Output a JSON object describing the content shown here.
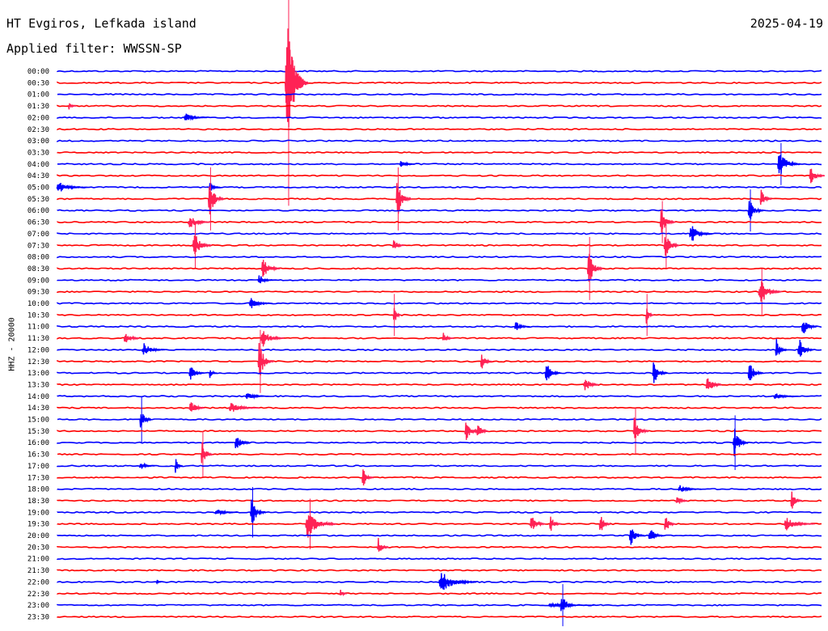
{
  "header": {
    "station": "HT Evgiros, Lefkada island",
    "date": "2025-04-19",
    "filter": "Applied filter: WWSSN-SP"
  },
  "chart_data": {
    "type": "line",
    "subtype": "helicorder",
    "ylabel": "HHZ - 20000",
    "row_labels": [
      "00:00",
      "00:30",
      "01:00",
      "01:30",
      "02:00",
      "02:30",
      "03:00",
      "03:30",
      "04:00",
      "04:30",
      "05:00",
      "05:30",
      "06:00",
      "06:30",
      "07:00",
      "07:30",
      "08:00",
      "08:30",
      "09:00",
      "09:30",
      "10:00",
      "10:30",
      "11:00",
      "11:30",
      "12:00",
      "12:30",
      "13:00",
      "13:30",
      "14:00",
      "14:30",
      "15:00",
      "15:30",
      "16:00",
      "16:30",
      "17:00",
      "17:30",
      "18:00",
      "18:30",
      "19:00",
      "19:30",
      "20:00",
      "20:30",
      "21:00",
      "21:30",
      "22:00",
      "22:30",
      "23:00",
      "23:30"
    ],
    "colors": {
      "even_rows": "#0000ff",
      "odd_rows": "#ff0000",
      "burst_odd": "#ff2255",
      "background": "#ffffff",
      "text": "#000000"
    },
    "events": [
      {
        "row": 1,
        "pos": 0.302,
        "amp": 95,
        "len": 0.03,
        "dense": 1
      },
      {
        "row": 3,
        "pos": 0.016,
        "amp": 6,
        "len": 0.01
      },
      {
        "row": 4,
        "pos": 0.17,
        "amp": 6,
        "len": 0.03
      },
      {
        "row": 8,
        "pos": 0.45,
        "amp": 8,
        "len": 0.02
      },
      {
        "row": 8,
        "pos": 0.945,
        "amp": 20,
        "len": 0.03
      },
      {
        "row": 9,
        "pos": 0.985,
        "amp": 14,
        "len": 0.02
      },
      {
        "row": 10,
        "pos": 0.005,
        "amp": 8,
        "len": 0.04
      },
      {
        "row": 10,
        "pos": 0.2,
        "amp": 10,
        "len": 0.015
      },
      {
        "row": 11,
        "pos": 0.445,
        "amp": 30,
        "len": 0.02
      },
      {
        "row": 11,
        "pos": 0.2,
        "amp": 30,
        "len": 0.02
      },
      {
        "row": 11,
        "pos": 0.92,
        "amp": 16,
        "len": 0.015
      },
      {
        "row": 12,
        "pos": 0.905,
        "amp": 20,
        "len": 0.02
      },
      {
        "row": 13,
        "pos": 0.175,
        "amp": 10,
        "len": 0.03
      },
      {
        "row": 13,
        "pos": 0.79,
        "amp": 20,
        "len": 0.02
      },
      {
        "row": 14,
        "pos": 0.83,
        "amp": 14,
        "len": 0.03
      },
      {
        "row": 15,
        "pos": 0.18,
        "amp": 22,
        "len": 0.025
      },
      {
        "row": 15,
        "pos": 0.44,
        "amp": 14,
        "len": 0.015
      },
      {
        "row": 15,
        "pos": 0.795,
        "amp": 22,
        "len": 0.02
      },
      {
        "row": 17,
        "pos": 0.27,
        "amp": 16,
        "len": 0.025
      },
      {
        "row": 17,
        "pos": 0.695,
        "amp": 30,
        "len": 0.02
      },
      {
        "row": 18,
        "pos": 0.265,
        "amp": 10,
        "len": 0.02
      },
      {
        "row": 19,
        "pos": 0.92,
        "amp": 22,
        "len": 0.03
      },
      {
        "row": 20,
        "pos": 0.255,
        "amp": 8,
        "len": 0.03
      },
      {
        "row": 21,
        "pos": 0.44,
        "amp": 20,
        "len": 0.01
      },
      {
        "row": 21,
        "pos": 0.77,
        "amp": 20,
        "len": 0.01
      },
      {
        "row": 22,
        "pos": 0.6,
        "amp": 8,
        "len": 0.02
      },
      {
        "row": 22,
        "pos": 0.975,
        "amp": 16,
        "len": 0.02
      },
      {
        "row": 23,
        "pos": 0.09,
        "amp": 12,
        "len": 0.02
      },
      {
        "row": 23,
        "pos": 0.27,
        "amp": 14,
        "len": 0.03
      },
      {
        "row": 23,
        "pos": 0.505,
        "amp": 8,
        "len": 0.015
      },
      {
        "row": 24,
        "pos": 0.115,
        "amp": 10,
        "len": 0.03
      },
      {
        "row": 24,
        "pos": 0.94,
        "amp": 18,
        "len": 0.015
      },
      {
        "row": 24,
        "pos": 0.97,
        "amp": 18,
        "len": 0.02
      },
      {
        "row": 25,
        "pos": 0.555,
        "amp": 14,
        "len": 0.015
      },
      {
        "row": 25,
        "pos": 0.265,
        "amp": 30,
        "len": 0.02
      },
      {
        "row": 26,
        "pos": 0.175,
        "amp": 12,
        "len": 0.02
      },
      {
        "row": 26,
        "pos": 0.2,
        "amp": 10,
        "len": 0.01
      },
      {
        "row": 26,
        "pos": 0.64,
        "amp": 18,
        "len": 0.02
      },
      {
        "row": 26,
        "pos": 0.78,
        "amp": 18,
        "len": 0.02
      },
      {
        "row": 26,
        "pos": 0.905,
        "amp": 18,
        "len": 0.02
      },
      {
        "row": 27,
        "pos": 0.69,
        "amp": 14,
        "len": 0.02
      },
      {
        "row": 27,
        "pos": 0.85,
        "amp": 18,
        "len": 0.02
      },
      {
        "row": 28,
        "pos": 0.25,
        "amp": 6,
        "len": 0.03
      },
      {
        "row": 28,
        "pos": 0.94,
        "amp": 6,
        "len": 0.03
      },
      {
        "row": 29,
        "pos": 0.175,
        "amp": 14,
        "len": 0.02
      },
      {
        "row": 29,
        "pos": 0.23,
        "amp": 8,
        "len": 0.04
      },
      {
        "row": 30,
        "pos": 0.11,
        "amp": 22,
        "len": 0.015
      },
      {
        "row": 31,
        "pos": 0.535,
        "amp": 16,
        "len": 0.02
      },
      {
        "row": 31,
        "pos": 0.55,
        "amp": 14,
        "len": 0.015
      },
      {
        "row": 31,
        "pos": 0.755,
        "amp": 22,
        "len": 0.02
      },
      {
        "row": 32,
        "pos": 0.235,
        "amp": 16,
        "len": 0.02
      },
      {
        "row": 32,
        "pos": 0.885,
        "amp": 26,
        "len": 0.02
      },
      {
        "row": 33,
        "pos": 0.19,
        "amp": 22,
        "len": 0.015
      },
      {
        "row": 34,
        "pos": 0.155,
        "amp": 14,
        "len": 0.01
      },
      {
        "row": 34,
        "pos": 0.11,
        "amp": 6,
        "len": 0.02
      },
      {
        "row": 35,
        "pos": 0.4,
        "amp": 16,
        "len": 0.015
      },
      {
        "row": 36,
        "pos": 0.815,
        "amp": 6,
        "len": 0.03
      },
      {
        "row": 37,
        "pos": 0.81,
        "amp": 12,
        "len": 0.015
      },
      {
        "row": 37,
        "pos": 0.96,
        "amp": 14,
        "len": 0.015
      },
      {
        "row": 38,
        "pos": 0.255,
        "amp": 24,
        "len": 0.02
      },
      {
        "row": 38,
        "pos": 0.21,
        "amp": 6,
        "len": 0.03
      },
      {
        "row": 39,
        "pos": 0.33,
        "amp": 24,
        "len": 0.04
      },
      {
        "row": 39,
        "pos": 0.62,
        "amp": 16,
        "len": 0.02
      },
      {
        "row": 39,
        "pos": 0.645,
        "amp": 14,
        "len": 0.015
      },
      {
        "row": 39,
        "pos": 0.71,
        "amp": 16,
        "len": 0.015
      },
      {
        "row": 39,
        "pos": 0.795,
        "amp": 16,
        "len": 0.015
      },
      {
        "row": 39,
        "pos": 0.955,
        "amp": 10,
        "len": 0.04
      },
      {
        "row": 40,
        "pos": 0.75,
        "amp": 16,
        "len": 0.02
      },
      {
        "row": 40,
        "pos": 0.775,
        "amp": 14,
        "len": 0.02
      },
      {
        "row": 41,
        "pos": 0.42,
        "amp": 14,
        "len": 0.015
      },
      {
        "row": 44,
        "pos": 0.505,
        "amp": 16,
        "len": 0.05
      },
      {
        "row": 44,
        "pos": 0.13,
        "amp": 6,
        "len": 0.005
      },
      {
        "row": 45,
        "pos": 0.37,
        "amp": 8,
        "len": 0.01
      },
      {
        "row": 46,
        "pos": 0.66,
        "amp": 20,
        "len": 0.02
      },
      {
        "row": 46,
        "pos": 0.65,
        "amp": 3,
        "len": 0.06
      }
    ]
  }
}
